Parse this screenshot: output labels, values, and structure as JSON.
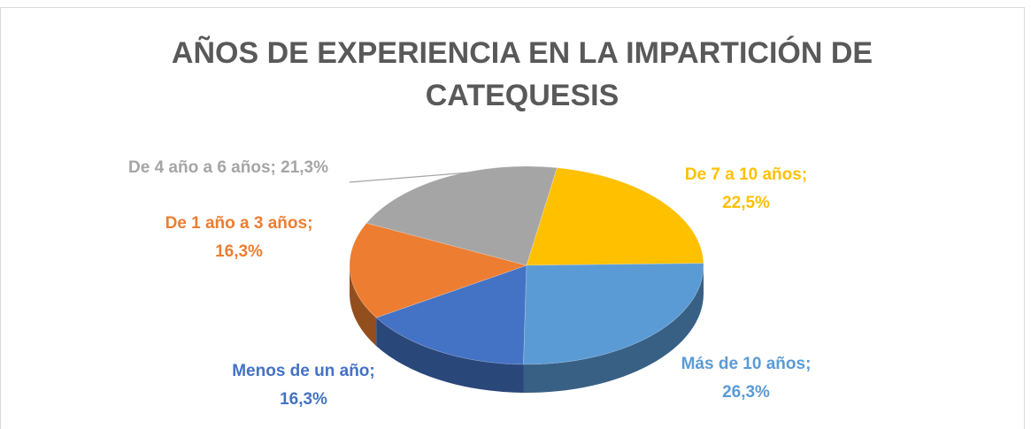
{
  "chart_data": {
    "type": "pie3d",
    "title": [
      "AÑOS DE EXPERIENCIA EN LA IMPARTICIÓN DE",
      "CATEQUESIS"
    ],
    "categories": [
      "Menos de un año",
      "De 1 año a 3 años",
      "De 4 año a 6 años",
      "De 7 a 10 años",
      "Más de 10 años"
    ],
    "values": [
      16.3,
      16.3,
      21.3,
      22.5,
      26.3
    ],
    "value_labels": [
      "16,3%",
      "16,3%",
      "21,3%",
      "22,5%",
      "26,3%"
    ],
    "colors": [
      "#4472c4",
      "#ed7d31",
      "#a5a5a5",
      "#ffc000",
      "#5b9bd5"
    ]
  }
}
